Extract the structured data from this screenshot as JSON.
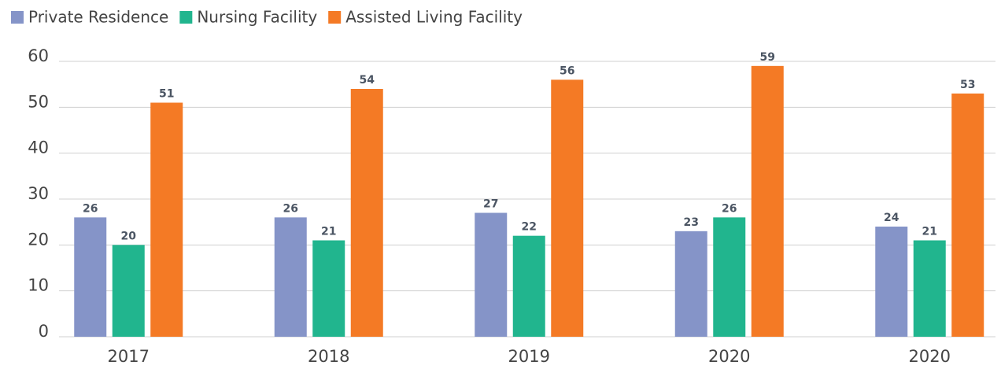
{
  "chart_data": {
    "type": "bar",
    "categories": [
      "2017",
      "2018",
      "2019",
      "2020",
      "2020"
    ],
    "series": [
      {
        "name": "Private Residence",
        "color": "#8594c8",
        "values": [
          26,
          26,
          27,
          23,
          24
        ]
      },
      {
        "name": "Nursing Facility",
        "color": "#21b58e",
        "values": [
          20,
          21,
          22,
          26,
          21
        ]
      },
      {
        "name": "Assisted Living Facility",
        "color": "#f47a25",
        "values": [
          51,
          54,
          56,
          59,
          53
        ]
      }
    ],
    "ylim": [
      0,
      60
    ],
    "yticks": [
      0,
      10,
      20,
      30,
      40,
      50,
      60
    ],
    "grid": true,
    "legend": "top-left"
  }
}
